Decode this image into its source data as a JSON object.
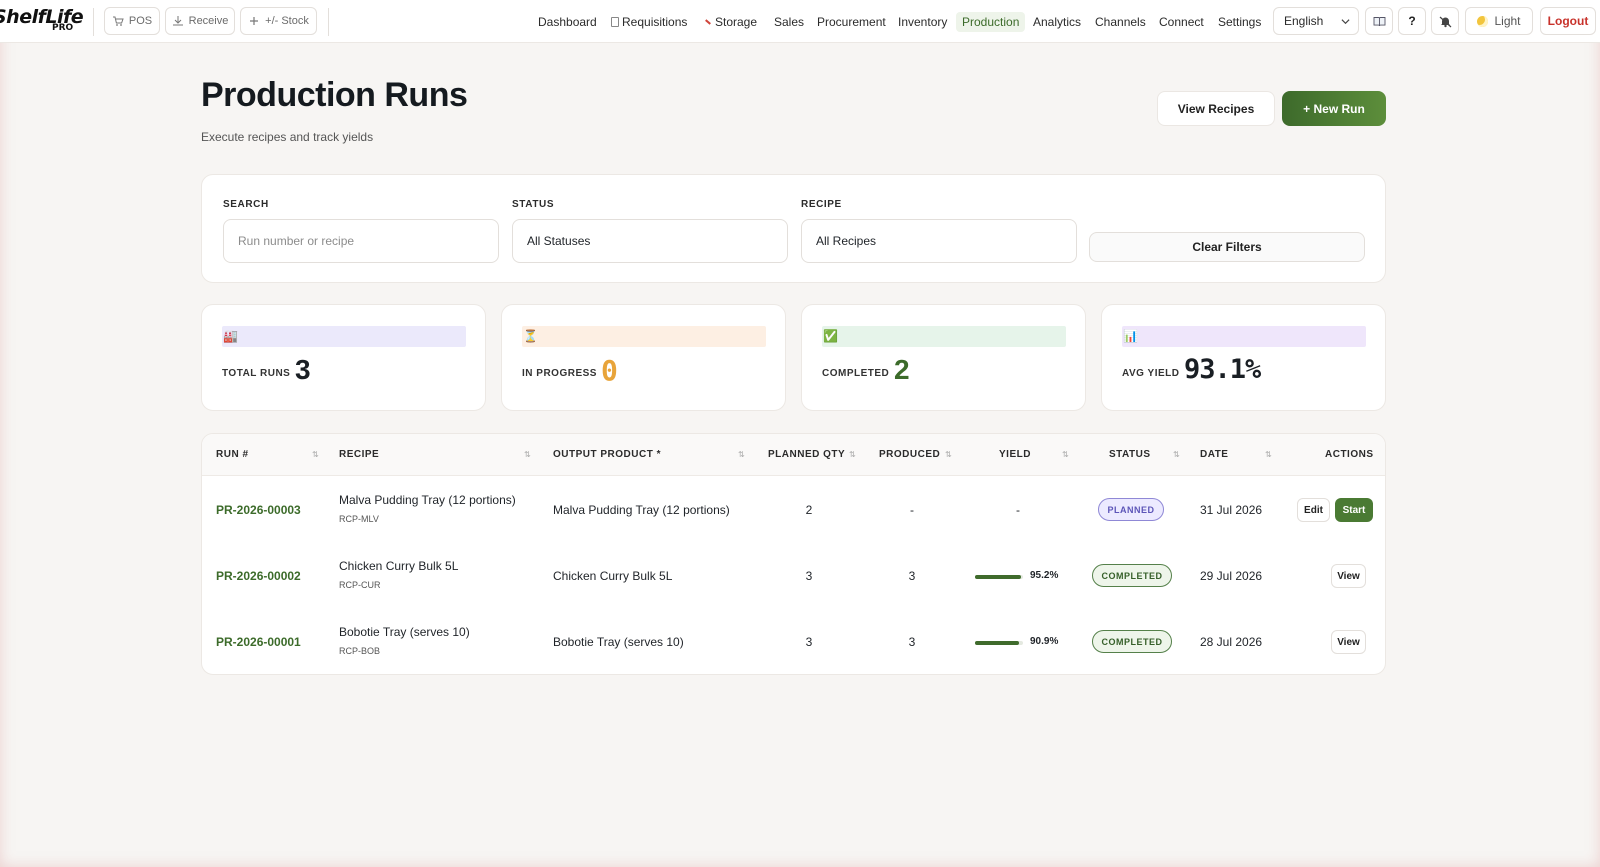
{
  "brand": {
    "name": "ShelfLife",
    "tier": "PRO"
  },
  "quick_actions": [
    {
      "label": "POS",
      "icon": "cart-icon"
    },
    {
      "label": "Receive",
      "icon": "download-icon"
    },
    {
      "label": "+/- Stock",
      "icon": "plus-icon"
    }
  ],
  "nav": {
    "links": [
      "Dashboard",
      "Requisitions",
      "Storage",
      "Sales",
      "Procurement",
      "Inventory",
      "Production",
      "Analytics",
      "Channels",
      "Connect",
      "Settings"
    ],
    "active": "Production",
    "language": "English",
    "help_label": "?",
    "theme_label": "Light",
    "logout_label": "Logout"
  },
  "header": {
    "title": "Production Runs",
    "subtitle": "Execute recipes and track yields",
    "view_recipes_label": "View Recipes",
    "new_run_label": "+ New Run"
  },
  "filters": {
    "search_label": "SEARCH",
    "search_placeholder": "Run number or recipe",
    "search_value": "",
    "status_label": "STATUS",
    "status_value": "All Statuses",
    "recipe_label": "RECIPE",
    "recipe_value": "All Recipes",
    "clear_label": "Clear Filters"
  },
  "stats": [
    {
      "label": "TOTAL RUNS",
      "value": "3",
      "emoji": "🏭",
      "strip_color": "#ebe9fb",
      "value_color": "#1a1f24"
    },
    {
      "label": "IN PROGRESS",
      "value": "0",
      "emoji": "⏳",
      "strip_color": "#fdefe3",
      "value_color": "#e8a43a"
    },
    {
      "label": "COMPLETED",
      "value": "2",
      "emoji": "✅",
      "strip_color": "#e6f4ea",
      "value_color": "#3c6b2a"
    },
    {
      "label": "AVG YIELD",
      "value": "93.1%",
      "emoji": "📊",
      "strip_color": "#efe6fb",
      "value_color": "#1a1f24"
    }
  ],
  "table": {
    "columns": [
      "RUN #",
      "RECIPE",
      "OUTPUT PRODUCT *",
      "PLANNED QTY",
      "PRODUCED",
      "YIELD",
      "STATUS",
      "DATE",
      "ACTIONS"
    ],
    "rows": [
      {
        "run_no": "PR-2026-00003",
        "recipe": "Malva Pudding Tray (12 portions)",
        "recipe_code": "RCP-MLV",
        "output": "Malva Pudding Tray (12 portions)",
        "planned": "2",
        "produced": "-",
        "yield": "-",
        "yield_pct": null,
        "status": "PLANNED",
        "date": "31 Jul 2026",
        "actions": [
          "Edit",
          "Start"
        ]
      },
      {
        "run_no": "PR-2026-00002",
        "recipe": "Chicken Curry Bulk 5L",
        "recipe_code": "RCP-CUR",
        "output": "Chicken Curry Bulk 5L",
        "planned": "3",
        "produced": "3",
        "yield": "95.2%",
        "yield_pct": 95.2,
        "status": "COMPLETED",
        "date": "29 Jul 2026",
        "actions": [
          "View"
        ]
      },
      {
        "run_no": "PR-2026-00001",
        "recipe": "Bobotie Tray (serves 10)",
        "recipe_code": "RCP-BOB",
        "output": "Bobotie Tray (serves 10)",
        "planned": "3",
        "produced": "3",
        "yield": "90.9%",
        "yield_pct": 90.9,
        "status": "COMPLETED",
        "date": "28 Jul 2026",
        "actions": [
          "View"
        ]
      }
    ]
  },
  "colors": {
    "accent_green": "#3c6b2a",
    "logout_red": "#c8322b",
    "planned_purple": "#5c55b8"
  }
}
